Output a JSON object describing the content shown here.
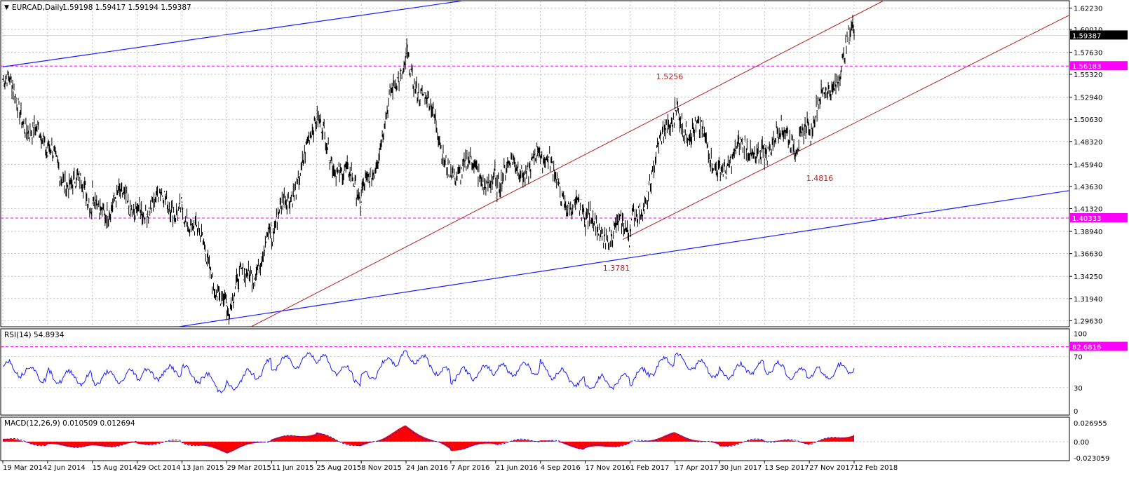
{
  "header": {
    "symbol_label": "EURCAD,Daily",
    "ohlc": "1.59198 1.59417 1.59194 1.59387"
  },
  "colors": {
    "price": "#000000",
    "channel": "#b22222",
    "trend": "#1a1aff",
    "level": "#ff00ff",
    "rsi": "#1a1aff",
    "macd_hist": "#ff0000",
    "macd_signal": "#1a1aff",
    "grid": "#9aa0a6"
  },
  "price_axis": {
    "ticks": [
      "1.62230",
      "1.60010",
      "1.57630",
      "1.55320",
      "1.52940",
      "1.50630",
      "1.48320",
      "1.45940",
      "1.43630",
      "1.41320",
      "1.38940",
      "1.36630",
      "1.34250",
      "1.31940",
      "1.29630"
    ],
    "current_label": "1.59387",
    "level_labels": [
      "1.56183",
      "1.40333"
    ]
  },
  "annotations": [
    "1.5256",
    "1.4816",
    "1.3781"
  ],
  "rsi": {
    "title": "RSI(14) 54.8934",
    "ticks": [
      "100",
      "70",
      "30",
      "0"
    ],
    "level_label": "82.6816"
  },
  "macd": {
    "title": "MACD(12,26,9) 0.010509 0.012694",
    "ticks": [
      "0.026955",
      "0.00",
      "-0.023059"
    ]
  },
  "time_axis": {
    "labels": [
      "19 Mar 2014",
      "2 Jun 2014",
      "15 Aug 2014",
      "29 Oct 2014",
      "13 Jan 2015",
      "29 Mar 2015",
      "11 Jun 2015",
      "25 Aug 2015",
      "8 Nov 2015",
      "24 Jan 2016",
      "7 Apr 2016",
      "21 Jun 2016",
      "4 Sep 2016",
      "17 Nov 2016",
      "1 Feb 2017",
      "17 Apr 2017",
      "30 Jun 2017",
      "13 Sep 2017",
      "27 Nov 2017",
      "12 Feb 2018"
    ]
  },
  "chart_data": {
    "type": "line",
    "title": "EURCAD,Daily",
    "series": [
      {
        "name": "EURCAD",
        "x": [
          "19 Mar 2014",
          "2 Jun 2014",
          "15 Aug 2014",
          "29 Oct 2014",
          "13 Jan 2015",
          "29 Mar 2015",
          "11 Jun 2015",
          "25 Aug 2015",
          "8 Nov 2015",
          "24 Jan 2016",
          "7 Apr 2016",
          "21 Jun 2016",
          "4 Sep 2016",
          "17 Nov 2016",
          "1 Feb 2017",
          "17 Apr 2017",
          "30 Jun 2017",
          "13 Sep 2017",
          "27 Nov 2017",
          "12 Feb 2018"
        ],
        "values": [
          1.548,
          1.468,
          1.419,
          1.418,
          1.42,
          1.312,
          1.382,
          1.497,
          1.42,
          1.575,
          1.459,
          1.445,
          1.467,
          1.395,
          1.385,
          1.518,
          1.462,
          1.48,
          1.494,
          1.594
        ]
      }
    ],
    "ylim": [
      1.29,
      1.63
    ],
    "levels": [
      1.56183,
      1.40333
    ],
    "rsi_values": [
      58,
      45,
      42,
      45,
      52,
      30,
      60,
      68,
      40,
      75,
      45,
      52,
      56,
      35,
      40,
      68,
      48,
      58,
      45,
      55
    ],
    "rsi_ylim": [
      0,
      100
    ],
    "macd_values": [
      0.004,
      -0.005,
      -0.007,
      -0.003,
      0.0,
      -0.015,
      0.004,
      0.012,
      -0.008,
      0.022,
      -0.012,
      -0.002,
      0.003,
      -0.01,
      -0.003,
      0.012,
      -0.006,
      0.003,
      -0.002,
      0.0105
    ],
    "macd_ylim": [
      -0.023059,
      0.026955
    ],
    "grid": true
  }
}
